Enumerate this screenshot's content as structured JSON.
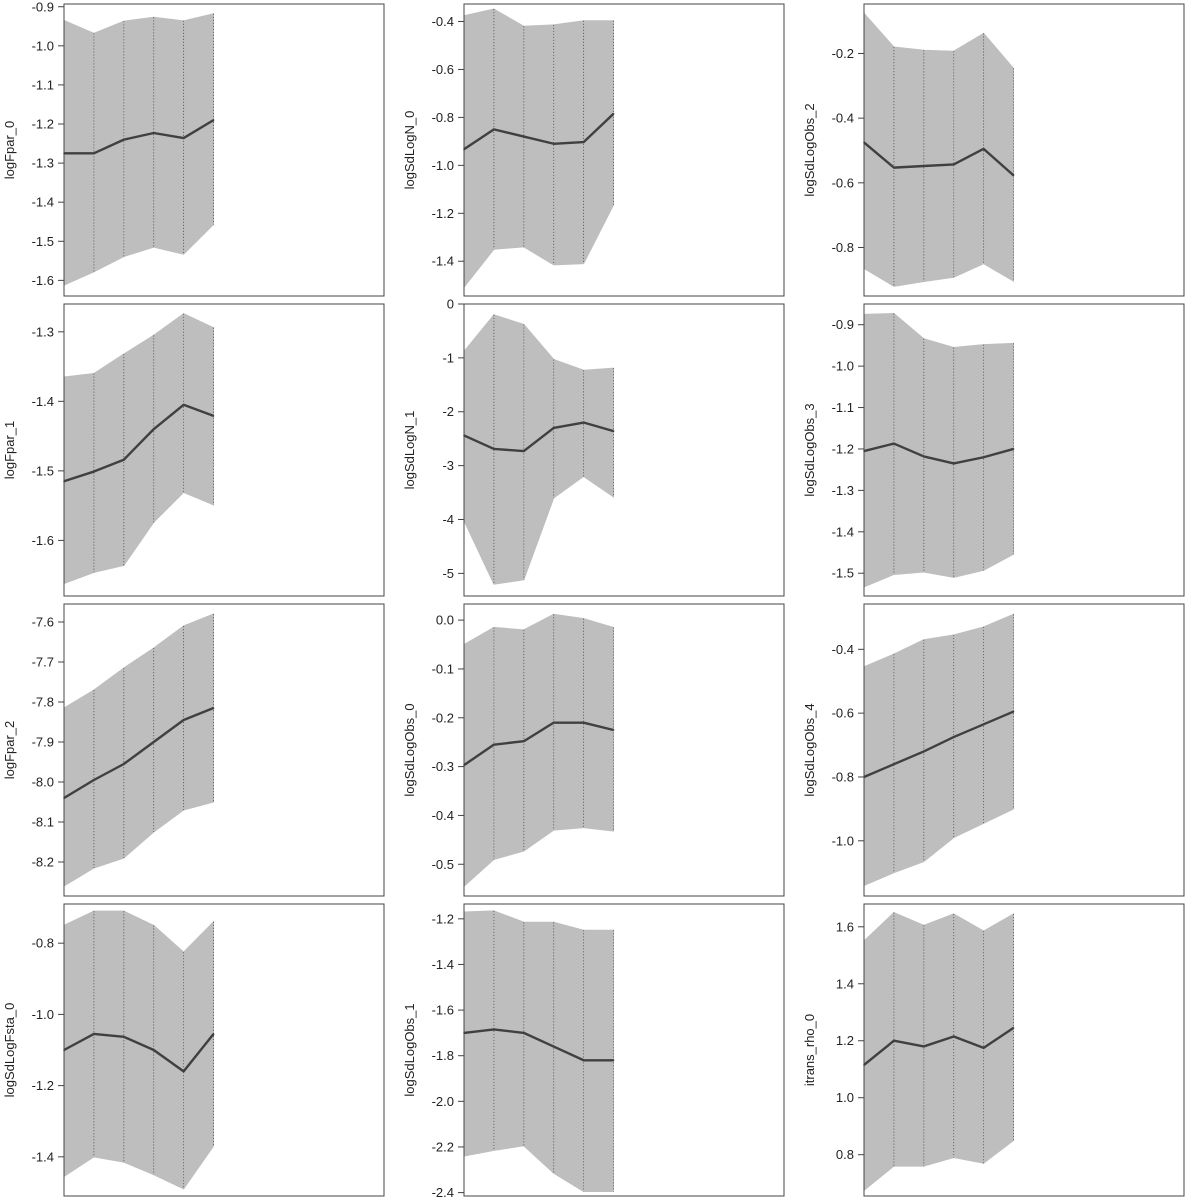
{
  "colors": {
    "band_fill": "#bebebe",
    "band_edge": "#bebebe",
    "mean_line": "#404040",
    "vertical_dotted": "#555555",
    "frame": "#444444",
    "tick_text": "#222222"
  },
  "chart_data": [
    {
      "type": "line",
      "ylabel": "logFpar_0",
      "x": [
        1,
        2,
        3,
        4,
        5,
        6
      ],
      "series": [
        {
          "role": "mean",
          "values": [
            -1.275,
            -1.275,
            -1.24,
            -1.223,
            -1.236,
            -1.19
          ]
        },
        {
          "role": "upper",
          "values": [
            -0.935,
            -0.968,
            -0.937,
            -0.927,
            -0.936,
            -0.918
          ]
        },
        {
          "role": "lower",
          "values": [
            -1.612,
            -1.578,
            -1.539,
            -1.515,
            -1.533,
            -1.457
          ]
        }
      ],
      "yticks": [
        -1.6,
        -1.5,
        -1.4,
        -1.3,
        -1.2,
        -1.1,
        -1.0,
        -0.9
      ],
      "ytick_labels": [
        "-1.6",
        "-1.5",
        "-1.4",
        "-1.3",
        "-1.2",
        "-1.1",
        "-1.0",
        "-0.9"
      ],
      "xlim": [
        1,
        11.7
      ],
      "ylim": [
        -1.64,
        -0.893
      ]
    },
    {
      "type": "line",
      "ylabel": "logSdLogN_0",
      "x": [
        1,
        2,
        3,
        4,
        5,
        6
      ],
      "series": [
        {
          "role": "mean",
          "values": [
            -0.933,
            -0.85,
            -0.88,
            -0.91,
            -0.903,
            -0.785
          ]
        },
        {
          "role": "upper",
          "values": [
            -0.376,
            -0.348,
            -0.42,
            -0.414,
            -0.397,
            -0.397
          ]
        },
        {
          "role": "lower",
          "values": [
            -1.508,
            -1.35,
            -1.34,
            -1.415,
            -1.41,
            -1.165
          ]
        }
      ],
      "yticks": [
        -1.4,
        -1.2,
        -1.0,
        -0.8,
        -0.6,
        -0.4
      ],
      "ytick_labels": [
        "-1.4",
        "-1.2",
        "-1.0",
        "-0.8",
        "-0.6",
        "-0.4"
      ],
      "xlim": [
        1,
        11.7
      ],
      "ylim": [
        -1.545,
        -0.327
      ]
    },
    {
      "type": "line",
      "ylabel": "logSdLogObs_2",
      "x": [
        1,
        2,
        3,
        4,
        5,
        6
      ],
      "series": [
        {
          "role": "mean",
          "values": [
            -0.475,
            -0.553,
            -0.548,
            -0.543,
            -0.495,
            -0.577
          ]
        },
        {
          "role": "upper",
          "values": [
            -0.076,
            -0.18,
            -0.19,
            -0.193,
            -0.138,
            -0.246
          ]
        },
        {
          "role": "lower",
          "values": [
            -0.865,
            -0.92,
            -0.905,
            -0.892,
            -0.85,
            -0.904
          ]
        }
      ],
      "yticks": [
        -0.8,
        -0.6,
        -0.4,
        -0.2
      ],
      "ytick_labels": [
        "-0.8",
        "-0.6",
        "-0.4",
        "-0.2"
      ],
      "xlim": [
        1,
        11.7
      ],
      "ylim": [
        -0.95,
        -0.047
      ]
    },
    {
      "type": "line",
      "ylabel": "logFpar_1",
      "x": [
        1,
        2,
        3,
        4,
        5,
        6
      ],
      "series": [
        {
          "role": "mean",
          "values": [
            -1.515,
            -1.501,
            -1.484,
            -1.44,
            -1.405,
            -1.421
          ]
        },
        {
          "role": "upper",
          "values": [
            -1.365,
            -1.36,
            -1.332,
            -1.305,
            -1.274,
            -1.294
          ]
        },
        {
          "role": "lower",
          "values": [
            -1.662,
            -1.646,
            -1.636,
            -1.574,
            -1.531,
            -1.549
          ]
        }
      ],
      "yticks": [
        -1.6,
        -1.5,
        -1.4,
        -1.3
      ],
      "ytick_labels": [
        "-1.6",
        "-1.5",
        "-1.4",
        "-1.3"
      ],
      "xlim": [
        1,
        11.7
      ],
      "ylim": [
        -1.68,
        -1.26
      ]
    },
    {
      "type": "line",
      "ylabel": "logSdLogN_1",
      "x": [
        1,
        2,
        3,
        4,
        5,
        6
      ],
      "series": [
        {
          "role": "mean",
          "values": [
            -2.44,
            -2.69,
            -2.73,
            -2.3,
            -2.2,
            -2.36
          ]
        },
        {
          "role": "upper",
          "values": [
            -0.88,
            -0.2,
            -0.38,
            -1.03,
            -1.23,
            -1.19
          ]
        },
        {
          "role": "lower",
          "values": [
            -4.02,
            -5.2,
            -5.12,
            -3.6,
            -3.2,
            -3.58
          ]
        }
      ],
      "yticks": [
        -5,
        -4,
        -3,
        -2,
        -1,
        0
      ],
      "ytick_labels": [
        "-5",
        "-4",
        "-3",
        "-2",
        "-1",
        "0"
      ],
      "xlim": [
        1,
        11.7
      ],
      "ylim": [
        -5.42,
        0
      ]
    },
    {
      "type": "line",
      "ylabel": "logSdLogObs_3",
      "x": [
        1,
        2,
        3,
        4,
        5,
        6
      ],
      "series": [
        {
          "role": "mean",
          "values": [
            -1.205,
            -1.187,
            -1.218,
            -1.235,
            -1.22,
            -1.2
          ]
        },
        {
          "role": "upper",
          "values": [
            -0.875,
            -0.873,
            -0.934,
            -0.955,
            -0.948,
            -0.945
          ]
        },
        {
          "role": "lower",
          "values": [
            -1.533,
            -1.503,
            -1.497,
            -1.51,
            -1.493,
            -1.454
          ]
        }
      ],
      "yticks": [
        -1.5,
        -1.4,
        -1.3,
        -1.2,
        -1.1,
        -1.0,
        -0.9
      ],
      "ytick_labels": [
        "-1.5",
        "-1.4",
        "-1.3",
        "-1.2",
        "-1.1",
        "-1.0",
        "-0.9"
      ],
      "xlim": [
        1,
        11.7
      ],
      "ylim": [
        -1.555,
        -0.85
      ]
    },
    {
      "type": "line",
      "ylabel": "logFpar_2",
      "x": [
        1,
        2,
        3,
        4,
        5,
        6
      ],
      "series": [
        {
          "role": "mean",
          "values": [
            -8.04,
            -7.995,
            -7.955,
            -7.9,
            -7.845,
            -7.815
          ]
        },
        {
          "role": "upper",
          "values": [
            -7.815,
            -7.77,
            -7.715,
            -7.665,
            -7.61,
            -7.58
          ]
        },
        {
          "role": "lower",
          "values": [
            -8.26,
            -8.215,
            -8.19,
            -8.125,
            -8.07,
            -8.05
          ]
        }
      ],
      "yticks": [
        -8.2,
        -8.1,
        -8.0,
        -7.9,
        -7.8,
        -7.7,
        -7.6
      ],
      "ytick_labels": [
        "-8.2",
        "-8.1",
        "-8.0",
        "-7.9",
        "-7.8",
        "-7.7",
        "-7.6"
      ],
      "xlim": [
        1,
        11.7
      ],
      "ylim": [
        -8.285,
        -7.555
      ]
    },
    {
      "type": "line",
      "ylabel": "logSdLogObs_0",
      "x": [
        1,
        2,
        3,
        4,
        5,
        6
      ],
      "series": [
        {
          "role": "mean",
          "values": [
            -0.297,
            -0.255,
            -0.248,
            -0.21,
            -0.21,
            -0.225
          ]
        },
        {
          "role": "upper",
          "values": [
            -0.05,
            -0.015,
            -0.02,
            0.012,
            0.003,
            -0.015
          ]
        },
        {
          "role": "lower",
          "values": [
            -0.545,
            -0.49,
            -0.473,
            -0.43,
            -0.425,
            -0.432
          ]
        }
      ],
      "yticks": [
        -0.5,
        -0.4,
        -0.3,
        -0.2,
        -0.1,
        0.0
      ],
      "ytick_labels": [
        "-0.5",
        "-0.4",
        "-0.3",
        "-0.2",
        "-0.1",
        "0.0"
      ],
      "xlim": [
        1,
        11.7
      ],
      "ylim": [
        -0.565,
        0.033
      ]
    },
    {
      "type": "line",
      "ylabel": "logSdLogObs_4",
      "x": [
        1,
        2,
        3,
        4,
        5,
        6
      ],
      "series": [
        {
          "role": "mean",
          "values": [
            -0.8,
            -0.76,
            -0.72,
            -0.675,
            -0.635,
            -0.595
          ]
        },
        {
          "role": "upper",
          "values": [
            -0.455,
            -0.415,
            -0.37,
            -0.355,
            -0.33,
            -0.29
          ]
        },
        {
          "role": "lower",
          "values": [
            -1.14,
            -1.1,
            -1.065,
            -0.99,
            -0.945,
            -0.9
          ]
        }
      ],
      "yticks": [
        -1.0,
        -0.8,
        -0.6,
        -0.4
      ],
      "ytick_labels": [
        "-1.0",
        "-0.8",
        "-0.6",
        "-0.4"
      ],
      "xlim": [
        1,
        11.7
      ],
      "ylim": [
        -1.173,
        -0.258
      ]
    },
    {
      "type": "line",
      "ylabel": "logSdLogFsta_0",
      "x": [
        1,
        2,
        3,
        4,
        5,
        6
      ],
      "series": [
        {
          "role": "mean",
          "values": [
            -1.1,
            -1.055,
            -1.063,
            -1.1,
            -1.16,
            -1.055
          ]
        },
        {
          "role": "upper",
          "values": [
            -0.75,
            -0.71,
            -0.71,
            -0.75,
            -0.825,
            -0.74
          ]
        },
        {
          "role": "lower",
          "values": [
            -1.455,
            -1.4,
            -1.415,
            -1.45,
            -1.49,
            -1.37
          ]
        }
      ],
      "yticks": [
        -1.4,
        -1.2,
        -1.0,
        -0.8
      ],
      "ytick_labels": [
        "-1.4",
        "-1.2",
        "-1.0",
        "-0.8"
      ],
      "xlim": [
        1,
        11.7
      ],
      "ylim": [
        -1.51,
        -0.69
      ]
    },
    {
      "type": "line",
      "ylabel": "logSdLogObs_1",
      "x": [
        1,
        2,
        3,
        4,
        5,
        6
      ],
      "series": [
        {
          "role": "mean",
          "values": [
            -1.7,
            -1.685,
            -1.7,
            -1.76,
            -1.82,
            -1.82
          ]
        },
        {
          "role": "upper",
          "values": [
            -1.17,
            -1.165,
            -1.215,
            -1.215,
            -1.25,
            -1.25
          ]
        },
        {
          "role": "lower",
          "values": [
            -2.24,
            -2.215,
            -2.195,
            -2.315,
            -2.395,
            -2.395
          ]
        }
      ],
      "yticks": [
        -2.4,
        -2.2,
        -2.0,
        -1.8,
        -1.6,
        -1.4,
        -1.2
      ],
      "ytick_labels": [
        "-2.4",
        "-2.2",
        "-2.0",
        "-1.8",
        "-1.6",
        "-1.4",
        "-1.2"
      ],
      "xlim": [
        1,
        11.7
      ],
      "ylim": [
        -2.415,
        -1.135
      ]
    },
    {
      "type": "line",
      "ylabel": "itrans_rho_0",
      "x": [
        1,
        2,
        3,
        4,
        5,
        6
      ],
      "series": [
        {
          "role": "mean",
          "values": [
            1.115,
            1.2,
            1.18,
            1.215,
            1.175,
            1.245
          ]
        },
        {
          "role": "upper",
          "values": [
            1.55,
            1.65,
            1.605,
            1.645,
            1.585,
            1.645
          ]
        },
        {
          "role": "lower",
          "values": [
            0.675,
            0.76,
            0.76,
            0.79,
            0.77,
            0.85
          ]
        }
      ],
      "yticks": [
        0.8,
        1.0,
        1.2,
        1.4,
        1.6
      ],
      "ytick_labels": [
        "0.8",
        "1.0",
        "1.2",
        "1.4",
        "1.6"
      ],
      "xlim": [
        1,
        11.7
      ],
      "ylim": [
        0.655,
        1.68
      ]
    }
  ]
}
